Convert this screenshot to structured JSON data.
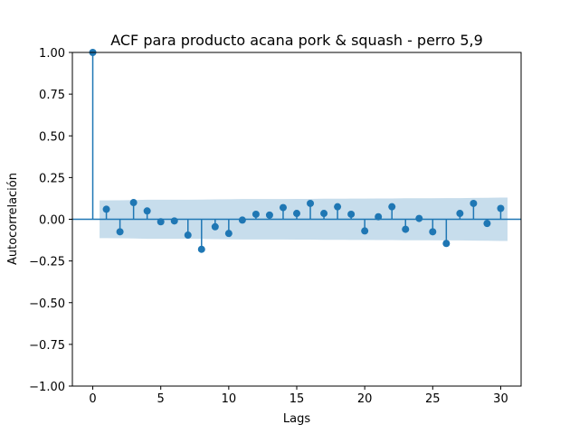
{
  "chart_data": {
    "type": "scatter",
    "subtype": "acf-stem",
    "title": "ACF para producto acana pork & squash - perro 5,9",
    "xlabel": "Lags",
    "ylabel": "Autocorrelación",
    "xlim": [
      -1.5,
      31.5
    ],
    "ylim": [
      -1.0,
      1.0
    ],
    "xticks": [
      0,
      5,
      10,
      15,
      20,
      25,
      30
    ],
    "xtick_labels": [
      "0",
      "5",
      "10",
      "15",
      "20",
      "25",
      "30"
    ],
    "yticks": [
      1.0,
      0.75,
      0.5,
      0.25,
      0.0,
      -0.25,
      -0.5,
      -0.75,
      -1.0
    ],
    "ytick_labels": [
      "1.00",
      "0.75",
      "0.50",
      "0.25",
      "0.00",
      "−0.25",
      "−0.50",
      "−0.75",
      "−1.00"
    ],
    "grid": false,
    "legend": "none",
    "colors": {
      "stem": "#1f77b4",
      "confidence_band": "#1f77b4",
      "band_opacity": 0.25
    },
    "series": [
      {
        "lags": [
          0,
          1,
          2,
          3,
          4,
          5,
          6,
          7,
          8,
          9,
          10,
          11,
          12,
          13,
          14,
          15,
          16,
          17,
          18,
          19,
          20,
          21,
          22,
          23,
          24,
          25,
          26,
          27,
          28,
          29,
          30
        ],
        "values": [
          1.0,
          0.06,
          -0.075,
          0.1,
          0.05,
          -0.015,
          -0.01,
          -0.095,
          -0.18,
          -0.045,
          -0.085,
          -0.005,
          0.03,
          0.025,
          0.07,
          0.035,
          0.095,
          0.035,
          0.075,
          0.03,
          -0.07,
          0.015,
          0.075,
          -0.06,
          0.005,
          -0.075,
          -0.145,
          0.035,
          0.095,
          -0.025,
          0.065
        ]
      }
    ],
    "confidence_band": {
      "lags": [
        0.5,
        1,
        2,
        3,
        4,
        5,
        6,
        7,
        8,
        9,
        10,
        11,
        12,
        13,
        14,
        15,
        16,
        17,
        18,
        19,
        20,
        21,
        22,
        23,
        24,
        25,
        26,
        27,
        28,
        29,
        30,
        30.5
      ],
      "upper": [
        0.113,
        0.113,
        0.114,
        0.115,
        0.117,
        0.117,
        0.117,
        0.117,
        0.118,
        0.119,
        0.12,
        0.121,
        0.121,
        0.121,
        0.121,
        0.122,
        0.122,
        0.123,
        0.123,
        0.124,
        0.124,
        0.125,
        0.125,
        0.126,
        0.126,
        0.126,
        0.127,
        0.127,
        0.128,
        0.129,
        0.13,
        0.13
      ]
    }
  }
}
